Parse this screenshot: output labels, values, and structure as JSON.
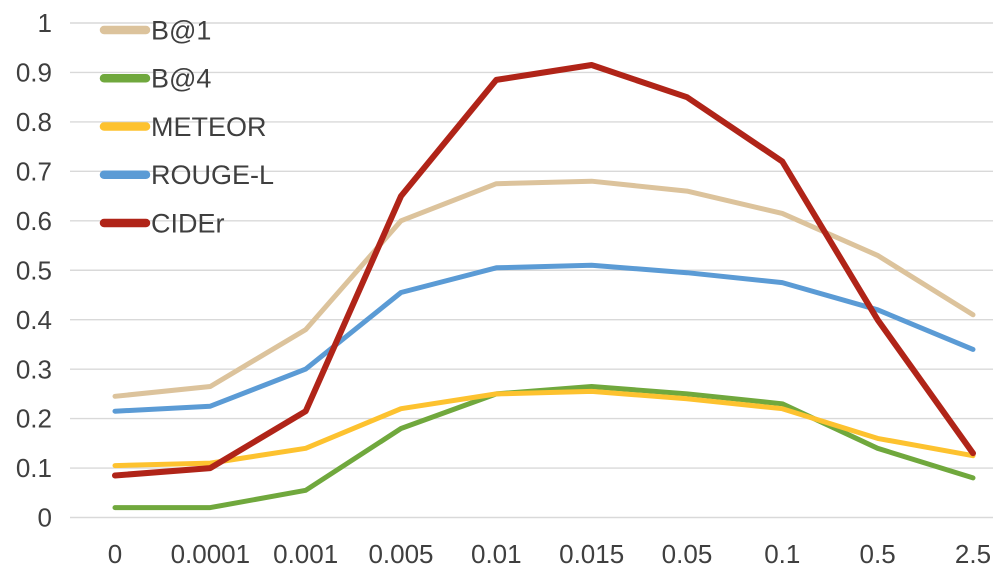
{
  "figure": {
    "background": "#ffffff",
    "grid_color": "#d9d9d9",
    "label_color": "#3f3f3f"
  },
  "chart_data": {
    "type": "line",
    "title": "",
    "xlabel": "",
    "ylabel": "",
    "grid": true,
    "legend_position": "top-left",
    "x_axis": {
      "tick_labels": [
        "0",
        "0.0001",
        "0.001",
        "0.005",
        "0.01",
        "0.015",
        "0.05",
        "0.1",
        "0.5",
        "2.5"
      ]
    },
    "y_axis": {
      "min": 0,
      "max": 1,
      "step": 0.1,
      "tick_labels": [
        "0",
        "0.1",
        "0.2",
        "0.3",
        "0.4",
        "0.5",
        "0.6",
        "0.7",
        "0.8",
        "0.9",
        "1"
      ]
    },
    "series": [
      {
        "name": "B@1",
        "color": "#dcc39c",
        "values": [
          0.245,
          0.265,
          0.38,
          0.6,
          0.675,
          0.68,
          0.66,
          0.615,
          0.53,
          0.41
        ]
      },
      {
        "name": "B@4",
        "color": "#70a83d",
        "values": [
          0.02,
          0.02,
          0.055,
          0.18,
          0.25,
          0.265,
          0.25,
          0.23,
          0.14,
          0.08
        ]
      },
      {
        "name": "METEOR",
        "color": "#fdc22f",
        "values": [
          0.105,
          0.11,
          0.14,
          0.22,
          0.25,
          0.255,
          0.24,
          0.22,
          0.16,
          0.125
        ]
      },
      {
        "name": "ROUGE-L",
        "color": "#5b9bd5",
        "values": [
          0.215,
          0.225,
          0.3,
          0.455,
          0.505,
          0.51,
          0.495,
          0.475,
          0.42,
          0.34
        ]
      },
      {
        "name": "CIDEr",
        "color": "#b02418",
        "values": [
          0.085,
          0.1,
          0.215,
          0.65,
          0.885,
          0.915,
          0.85,
          0.72,
          0.4,
          0.13
        ]
      }
    ]
  }
}
